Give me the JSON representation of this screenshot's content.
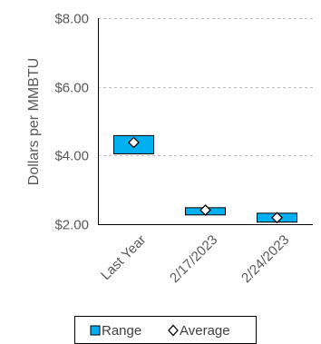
{
  "chart_data": {
    "type": "box",
    "title": "",
    "xlabel": "",
    "ylabel": "Dollars per MMBTU",
    "ylim": [
      2,
      8
    ],
    "ytick_values": [
      2,
      4,
      6,
      8
    ],
    "ytick_labels": [
      "$2.00",
      "$4.00",
      "$6.00",
      "$8.00"
    ],
    "grid": "horizontal dashed",
    "categories": [
      "Last Year",
      "2/17/2023",
      "2/24/2023"
    ],
    "series": [
      {
        "name": "Range",
        "low": [
          4.05,
          2.27,
          2.06
        ],
        "high": [
          4.58,
          2.48,
          2.32
        ],
        "color": "#00B0F0"
      },
      {
        "name": "Average",
        "values": [
          4.38,
          2.41,
          2.19
        ],
        "marker": "diamond"
      }
    ],
    "legend": {
      "position": "bottom",
      "entries": [
        "Range",
        "Average"
      ]
    }
  }
}
